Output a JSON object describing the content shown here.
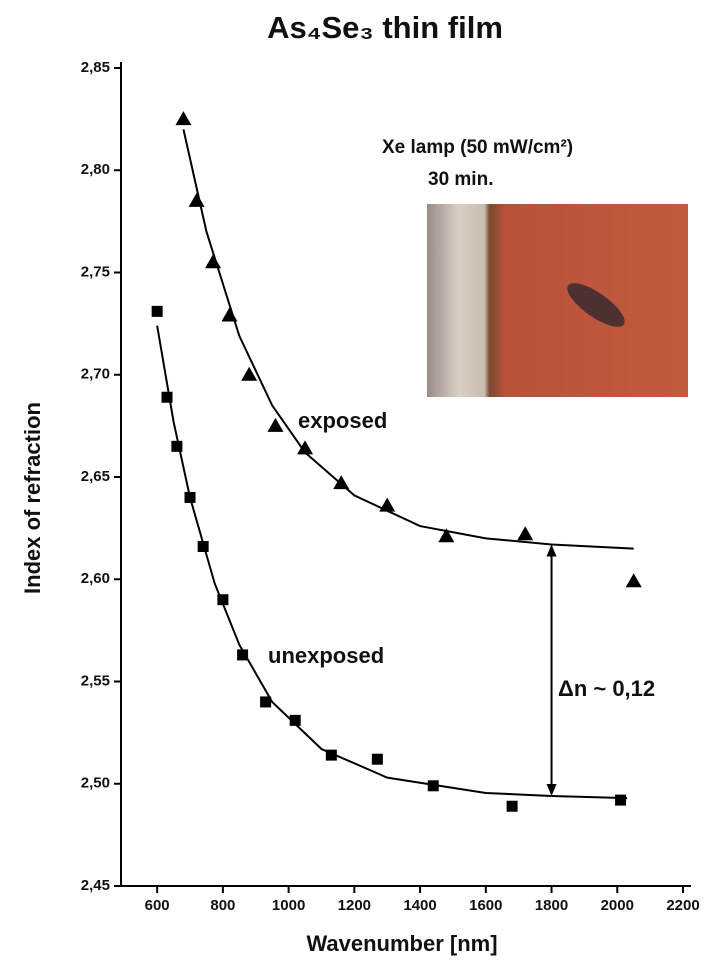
{
  "chart_data": {
    "type": "scatter",
    "title": "As₄Se₃ thin film",
    "x_label": "Wavenumber [nm]",
    "y_label": "Index of refraction",
    "annotations": [
      "Xe lamp (50 mW/cm²)",
      "30 min.",
      "exposed",
      "unexposed",
      "Δn ~ 0,12"
    ],
    "xlim": [
      490,
      2200
    ],
    "ylim": [
      2.45,
      2.85
    ],
    "xticks": [
      600,
      800,
      1000,
      1200,
      1400,
      1600,
      1800,
      2000,
      2200
    ],
    "yticks": [
      {
        "value": 2.45,
        "label": "2,45"
      },
      {
        "value": 2.5,
        "label": "2,50"
      },
      {
        "value": 2.55,
        "label": "2,55"
      },
      {
        "value": 2.6,
        "label": "2,60"
      },
      {
        "value": 2.65,
        "label": "2,65"
      },
      {
        "value": 2.7,
        "label": "2,70"
      },
      {
        "value": 2.75,
        "label": "2,75"
      },
      {
        "value": 2.8,
        "label": "2,80"
      },
      {
        "value": 2.85,
        "label": "2,85"
      }
    ],
    "series": [
      {
        "marker": "triangle",
        "color": "#000000",
        "x": [
          680,
          720,
          770,
          820,
          880,
          960,
          1050,
          1160,
          1300,
          1480,
          1720,
          2050
        ],
        "values": [
          2.825,
          2.785,
          2.755,
          2.729,
          2.7,
          2.675,
          2.664,
          2.647,
          2.636,
          2.621,
          2.622,
          2.599
        ]
      },
      {
        "marker": "square",
        "color": "#000000",
        "x": [
          600,
          630,
          660,
          700,
          740,
          800,
          860,
          930,
          1020,
          1130,
          1270,
          1440,
          1680,
          2010
        ],
        "values": [
          2.731,
          2.689,
          2.665,
          2.64,
          2.616,
          2.59,
          2.563,
          2.54,
          2.531,
          2.514,
          2.512,
          2.499,
          2.489,
          2.492
        ]
      },
      {
        "marker": "line",
        "color": "#000000",
        "x": [
          680,
          750,
          850,
          950,
          1050,
          1200,
          1400,
          1600,
          1800,
          2050
        ],
        "values": [
          2.82,
          2.77,
          2.719,
          2.685,
          2.662,
          2.641,
          2.626,
          2.62,
          2.617,
          2.615
        ]
      },
      {
        "marker": "line",
        "color": "#000000",
        "x": [
          600,
          650,
          700,
          775,
          850,
          950,
          1100,
          1300,
          1600,
          1800,
          2030
        ],
        "values": [
          2.724,
          2.677,
          2.64,
          2.598,
          2.568,
          2.54,
          2.517,
          2.503,
          2.4955,
          2.494,
          2.493
        ]
      }
    ]
  }
}
